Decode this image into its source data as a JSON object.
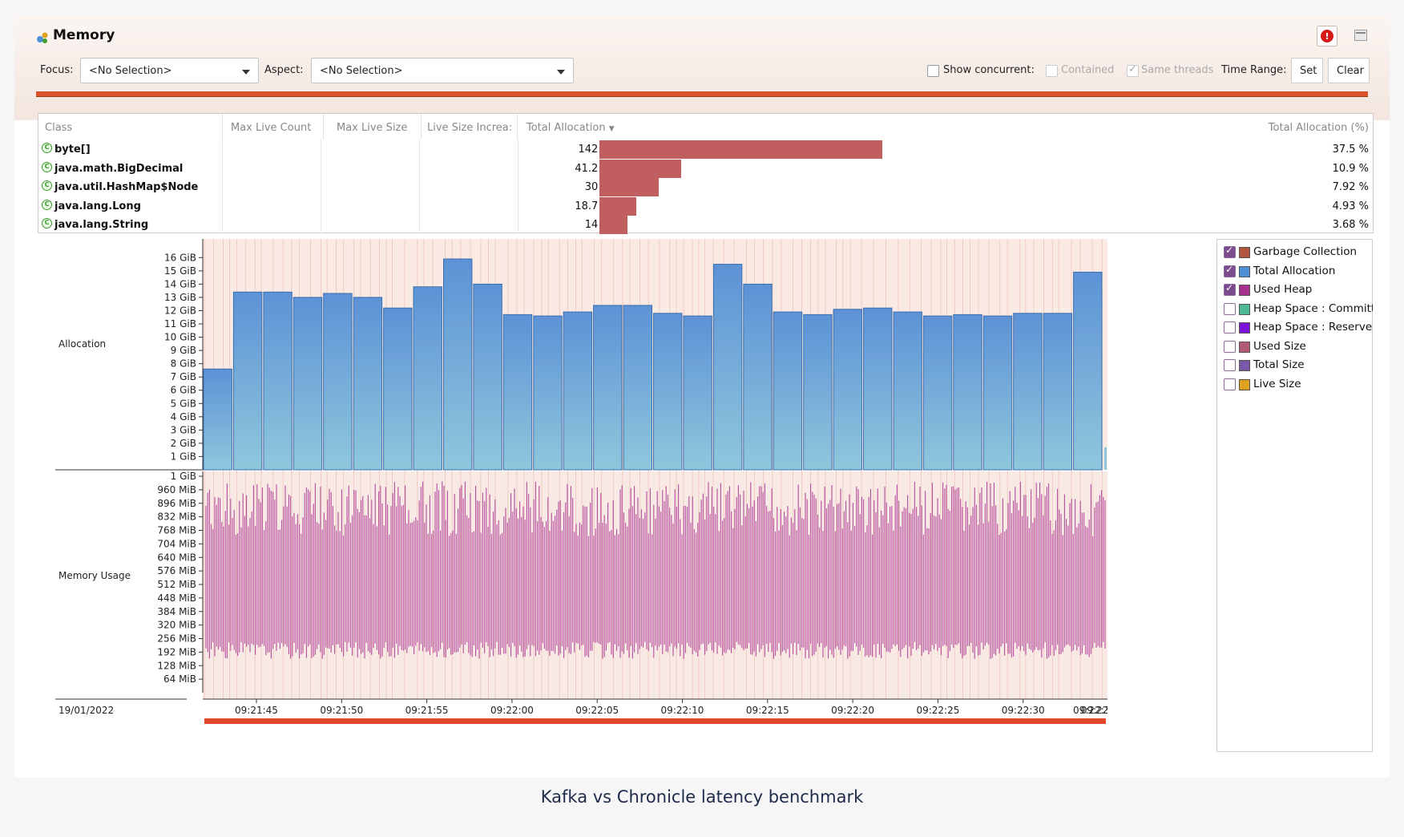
{
  "window": {
    "title": "Memory"
  },
  "toolbar": {
    "focus_label": "Focus:",
    "focus_value": "<No Selection>",
    "aspect_label": "Aspect:",
    "aspect_value": "<No Selection>",
    "show_concurrent_label": "Show concurrent:",
    "contained_label": "Contained",
    "same_threads_label": "Same threads",
    "time_range_label": "Time Range:",
    "set_label": "Set",
    "clear_label": "Clear"
  },
  "table": {
    "columns": [
      "Class",
      "Max Live Count",
      "Max Live Size",
      "Live Size Increa:",
      "Total Allocation",
      "Total Allocation (%)"
    ],
    "rows": [
      {
        "class": "byte[]",
        "total": "142 GiB",
        "pct": "37.5 %",
        "fraction": 0.375
      },
      {
        "class": "java.math.BigDecimal",
        "total": "41.2 GiB",
        "pct": "10.9 %",
        "fraction": 0.109
      },
      {
        "class": "java.util.HashMap$Node",
        "total": "30 GiB",
        "pct": "7.92 %",
        "fraction": 0.0792
      },
      {
        "class": "java.lang.Long",
        "total": "18.7 GiB",
        "pct": "4.93 %",
        "fraction": 0.0493
      },
      {
        "class": "java.lang.String",
        "total": "14 GiB",
        "pct": "3.68 %",
        "fraction": 0.0368
      }
    ]
  },
  "chart_data": [
    {
      "type": "bar",
      "title": "Allocation",
      "ylabel": "Allocation",
      "y_ticks": [
        "1 GiB",
        "2 GiB",
        "3 GiB",
        "4 GiB",
        "5 GiB",
        "6 GiB",
        "7 GiB",
        "8 GiB",
        "9 GiB",
        "10 GiB",
        "11 GiB",
        "12 GiB",
        "13 GiB",
        "14 GiB",
        "15 GiB",
        "16 GiB"
      ],
      "ylim": [
        0,
        16.2
      ],
      "values": [
        7.6,
        13.4,
        13.4,
        13.0,
        13.3,
        13.0,
        12.2,
        13.8,
        15.9,
        14.0,
        11.7,
        11.6,
        11.9,
        12.4,
        12.4,
        11.8,
        11.6,
        15.5,
        14.0,
        11.9,
        11.7,
        12.1,
        12.2,
        11.9,
        11.6,
        11.7,
        11.6,
        11.8,
        11.8,
        14.9
      ],
      "series": [
        {
          "name": "Total Allocation",
          "color": "#6a9fd8"
        }
      ]
    },
    {
      "type": "area",
      "title": "Memory Usage",
      "ylabel": "Memory Usage",
      "y_ticks": [
        "64 MiB",
        "128 MiB",
        "192 MiB",
        "256 MiB",
        "320 MiB",
        "384 MiB",
        "448 MiB",
        "512 MiB",
        "576 MiB",
        "640 MiB",
        "704 MiB",
        "768 MiB",
        "832 MiB",
        "896 MiB",
        "960 MiB",
        "1 GiB"
      ],
      "ylim": [
        0,
        1024
      ],
      "series": [
        {
          "name": "Used Heap",
          "color": "#a8308f",
          "min_mib": 160,
          "max_mib": 1000
        }
      ]
    }
  ],
  "axis": {
    "date": "19/01/2022",
    "x_ticks": [
      "09:21:45",
      "09:21:50",
      "09:21:55",
      "09:22:00",
      "09:22:05",
      "09:22:10",
      "09:22:15",
      "09:22:20",
      "09:22:25",
      "09:22:30",
      "09:22:35",
      "09:22"
    ]
  },
  "legend": {
    "items": [
      {
        "label": "Garbage Collection",
        "checked": true,
        "color": "#b4563f"
      },
      {
        "label": "Total Allocation",
        "checked": true,
        "color": "#4f8fd6"
      },
      {
        "label": "Used Heap",
        "checked": true,
        "color": "#a8308f"
      },
      {
        "label": "Heap Space : Committed",
        "checked": false,
        "color": "#4fb894"
      },
      {
        "label": "Heap Space : Reserved",
        "checked": false,
        "color": "#7a12d8"
      },
      {
        "label": "Used Size",
        "checked": false,
        "color": "#b25a73"
      },
      {
        "label": "Total Size",
        "checked": false,
        "color": "#7958a8"
      },
      {
        "label": "Live Size",
        "checked": false,
        "color": "#e0a020"
      }
    ]
  },
  "caption": "Kafka vs Chronicle latency benchmark"
}
